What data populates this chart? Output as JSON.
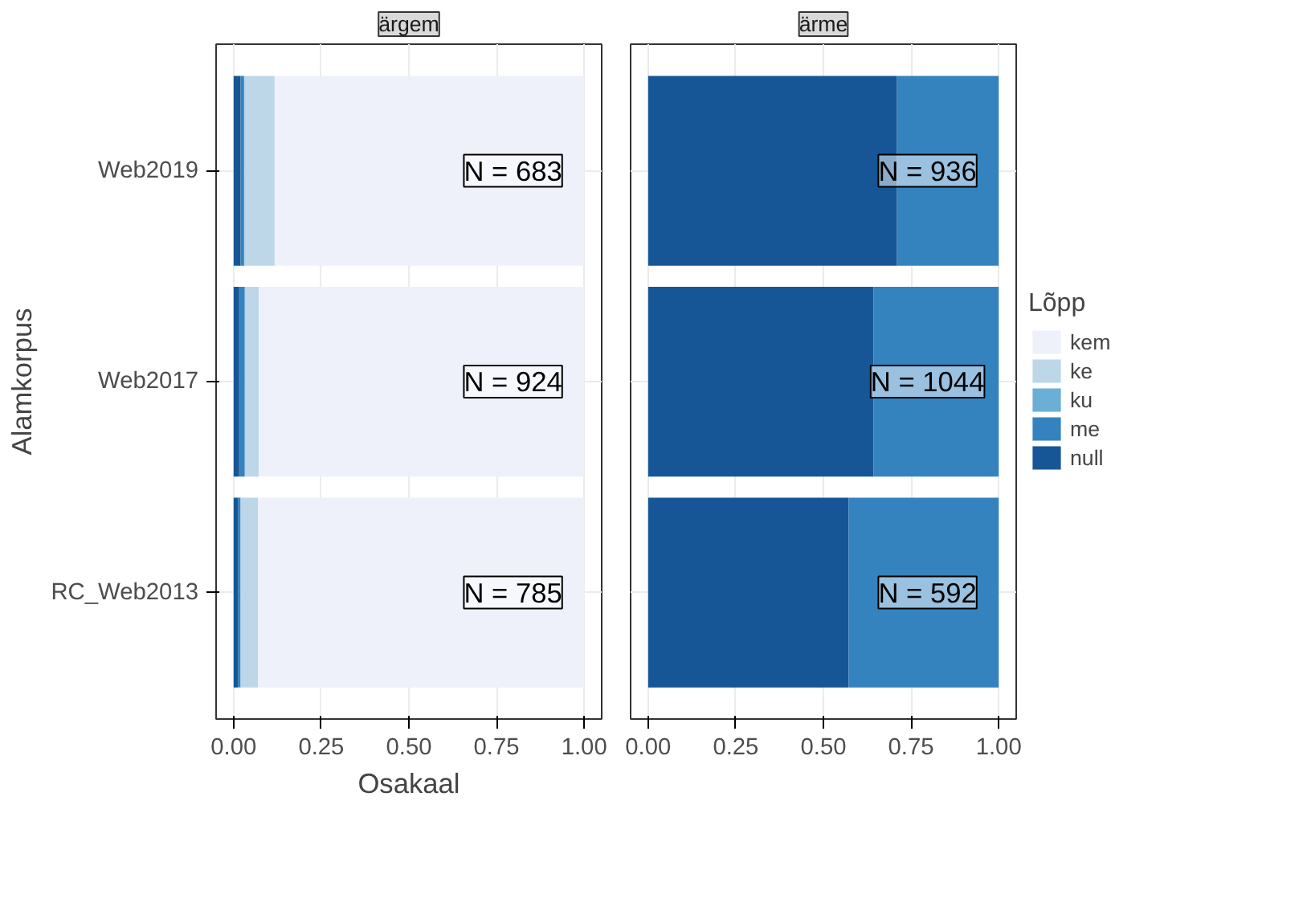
{
  "chart_data": [
    {
      "type": "bar",
      "orientation": "horizontal",
      "stacked": true,
      "title": "ärgem",
      "ylabel": "Alamkorpus",
      "xlabel": "Osakaal",
      "categories": [
        "Web2019",
        "Web2017",
        "RC_Web2013"
      ],
      "series": [
        {
          "color": "#165696",
          "values": [
            0.02,
            0.016,
            0.012
          ]
        },
        {
          "color": "#3583be",
          "values": [
            0.01,
            0.016,
            0.008
          ]
        },
        {
          "color": "#6baed6",
          "values": [
            0,
            0,
            0
          ]
        },
        {
          "color": "#bdd7e9",
          "values": [
            0.087,
            0.04,
            0.05
          ]
        },
        {
          "color": "#eef1fa",
          "values": [
            0.883,
            0.928,
            0.93
          ]
        }
      ],
      "xlim": [
        -0.05,
        1.05
      ],
      "xticks": [
        {
          "value": 0,
          "label": "0.00"
        },
        {
          "value": 0.25,
          "label": "0.25"
        },
        {
          "value": 0.5,
          "label": "0.50"
        },
        {
          "value": 0.75,
          "label": "0.75"
        },
        {
          "value": 1,
          "label": "1.00"
        }
      ],
      "grid": true,
      "legend": false,
      "annotations": [
        "N = 683",
        "N = 924",
        "N = 785"
      ]
    },
    {
      "type": "bar",
      "orientation": "horizontal",
      "stacked": true,
      "title": "ärme",
      "legend_title": "Lõpp",
      "series": [
        {
          "name": "null",
          "color": "#165696",
          "values": [
            0.71,
            0.643,
            0.572
          ]
        },
        {
          "name": "me",
          "color": "#3583be",
          "values": [
            0.29,
            0.357,
            0.428
          ]
        },
        {
          "name": "ku",
          "color": "#6baed6",
          "values": [
            0,
            0,
            0
          ]
        },
        {
          "name": "ke",
          "color": "#bdd7e9",
          "values": [
            0,
            0,
            0
          ]
        },
        {
          "name": "kem",
          "color": "#eef1fa",
          "values": [
            0,
            0,
            0
          ]
        }
      ],
      "xlim": [
        -0.05,
        1.05
      ],
      "xticks": [
        {
          "value": 0,
          "label": "0.00"
        },
        {
          "value": 0.25,
          "label": "0.25"
        },
        {
          "value": 0.5,
          "label": "0.50"
        },
        {
          "value": 0.75,
          "label": "0.75"
        },
        {
          "value": 1,
          "label": "1.00"
        }
      ],
      "grid": true,
      "legend": "right",
      "tick_labels": "x",
      "annotations": [
        "N = 936",
        "N = 1044",
        "N = 592"
      ]
    }
  ]
}
